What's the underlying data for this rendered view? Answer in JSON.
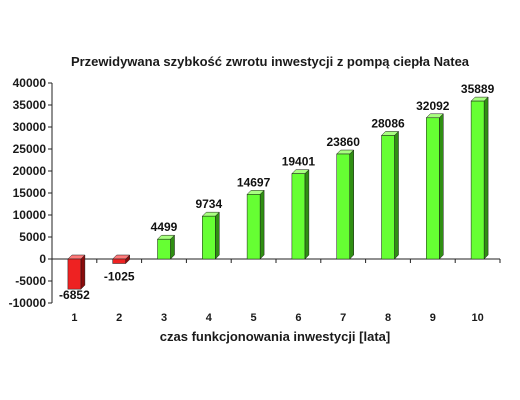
{
  "chart_data": {
    "type": "bar",
    "title": "Przewidywana szybkość zwrotu inwestycji z pompą ciepła Natea",
    "xlabel": "czas funkcjonowania inwestycji [lata]",
    "ylabel": "",
    "categories": [
      "1",
      "2",
      "3",
      "4",
      "5",
      "6",
      "7",
      "8",
      "9",
      "10"
    ],
    "values": [
      -6852,
      -1025,
      4499,
      9734,
      14697,
      19401,
      23860,
      28086,
      32092,
      35889
    ],
    "data_labels": [
      "-6852",
      "-1025",
      "4499",
      "9734",
      "14697",
      "19401",
      "23860",
      "28086",
      "32092",
      "35889"
    ],
    "y_ticks": [
      -10000,
      -5000,
      0,
      5000,
      10000,
      15000,
      20000,
      25000,
      30000,
      35000,
      40000
    ],
    "y_tick_labels": [
      "-10000",
      "-5000",
      "0",
      "5000",
      "10000",
      "15000",
      "20000",
      "25000",
      "30000",
      "35000",
      "40000"
    ],
    "ylim": [
      -10000,
      40000
    ],
    "grid": false,
    "legend": "none",
    "colors": {
      "positive": "#66ff33",
      "positive_side": "#2f8f12",
      "positive_top": "#a8ff80",
      "negative": "#ee2222",
      "negative_side": "#8a0c0c",
      "negative_top": "#ff7a7a",
      "axis": "#222222"
    }
  }
}
